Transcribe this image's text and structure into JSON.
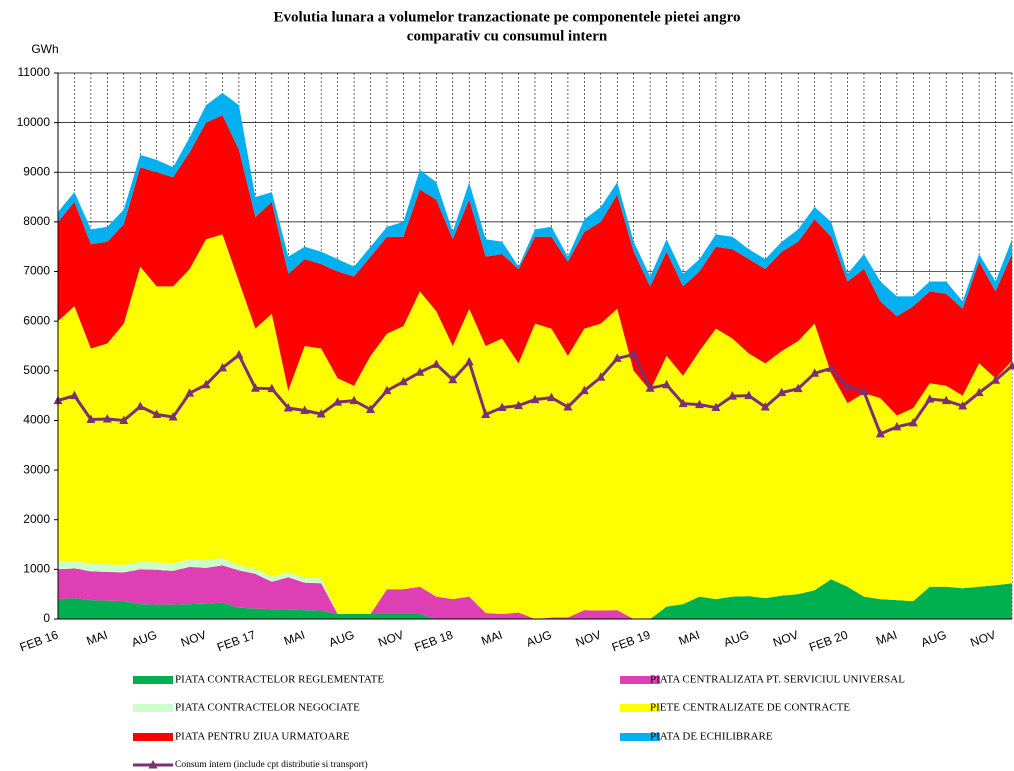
{
  "chart_data": {
    "type": "area",
    "title": [
      "Evolutia lunara a volumelor tranzactionate pe componentele pietei angro",
      "comparativ cu consumul intern"
    ],
    "y_unit": "GWh",
    "categories": [
      "FEB 16",
      null,
      null,
      "MAI",
      null,
      null,
      "AUG",
      null,
      null,
      "NOV",
      null,
      null,
      "FEB 17",
      null,
      null,
      "MAI",
      null,
      null,
      "AUG",
      null,
      null,
      "NOV",
      null,
      null,
      "FEB 18",
      null,
      null,
      "MAI",
      null,
      null,
      "AUG",
      null,
      null,
      "NOV",
      null,
      null,
      "FEB 19",
      null,
      null,
      "MAI",
      null,
      null,
      "AUG",
      null,
      null,
      "NOV",
      null,
      null,
      "FEB 20",
      null,
      null,
      "MAI",
      null,
      null,
      "AUG",
      null,
      null,
      "NOV",
      null
    ],
    "ylim": [
      0,
      11000
    ],
    "yticks": [
      0,
      1000,
      2000,
      3000,
      4000,
      5000,
      6000,
      7000,
      8000,
      9000,
      10000,
      11000
    ],
    "grid": true,
    "series": [
      {
        "name": "PIATA CONTRACTELOR REGLEMENTATE",
        "color": "#00b050",
        "values": [
          400,
          420,
          380,
          370,
          360,
          300,
          290,
          290,
          300,
          310,
          330,
          230,
          210,
          200,
          190,
          180,
          170,
          100,
          100,
          100,
          100,
          100,
          100,
          0,
          0,
          0,
          0,
          0,
          0,
          0,
          0,
          0,
          0,
          0,
          0,
          0,
          0,
          250,
          300,
          450,
          400,
          450,
          460,
          420,
          470,
          500,
          580,
          800,
          650,
          450,
          400,
          380,
          360,
          650,
          650,
          620,
          650,
          680,
          720
        ]
      },
      {
        "name": "PIATA CENTRALIZATA PT. SERVICIUL UNIVERSAL",
        "color": "#df3fb4",
        "values": [
          600,
          600,
          580,
          580,
          580,
          700,
          700,
          680,
          750,
          720,
          750,
          750,
          700,
          550,
          650,
          550,
          550,
          0,
          0,
          0,
          500,
          500,
          550,
          450,
          400,
          450,
          120,
          100,
          130,
          0,
          30,
          30,
          180,
          170,
          180,
          0,
          0,
          0,
          0,
          0,
          0,
          0,
          0,
          0,
          0,
          0,
          0,
          0,
          0,
          0,
          0,
          0,
          0,
          0,
          0,
          0,
          0,
          0,
          0
        ]
      },
      {
        "name": "PIATA CONTRACTELOR NEGOCIATE",
        "color": "#ccffcc",
        "values": [
          150,
          150,
          150,
          150,
          150,
          150,
          150,
          150,
          150,
          150,
          150,
          100,
          100,
          100,
          100,
          100,
          100,
          0,
          0,
          0,
          0,
          0,
          0,
          0,
          0,
          0,
          0,
          0,
          0,
          0,
          0,
          0,
          0,
          0,
          0,
          0,
          0,
          0,
          0,
          0,
          0,
          0,
          0,
          0,
          0,
          0,
          0,
          0,
          0,
          0,
          0,
          0,
          0,
          0,
          0,
          0,
          0,
          0,
          0
        ]
      },
      {
        "name": "PIETE CENTRALIZATE DE CONTRACTE",
        "color": "#ffff00",
        "values": [
          4850,
          5130,
          4340,
          4450,
          4860,
          5950,
          5560,
          5580,
          5850,
          6470,
          6520,
          5720,
          4840,
          5300,
          3660,
          4670,
          4630,
          4750,
          4600,
          5200,
          5150,
          5300,
          5950,
          5750,
          5100,
          5800,
          5380,
          5550,
          5020,
          5950,
          5820,
          5270,
          5670,
          5780,
          6070,
          5000,
          4600,
          5050,
          4600,
          4950,
          5450,
          5200,
          4890,
          4730,
          4930,
          5100,
          5370,
          4150,
          3700,
          4100,
          4050,
          3720,
          3890,
          4100,
          4050,
          3880,
          4500,
          4170,
          4480
        ]
      },
      {
        "name": "PIATA PENTRU ZIUA URMATOARE",
        "color": "#ff0000",
        "values": [
          2000,
          2100,
          2100,
          2050,
          2000,
          2000,
          2300,
          2200,
          2350,
          2350,
          2400,
          2650,
          2250,
          2250,
          2350,
          1750,
          1700,
          2150,
          2200,
          2000,
          1950,
          1800,
          2050,
          2250,
          2150,
          2200,
          1800,
          1700,
          1900,
          1750,
          1850,
          1900,
          1950,
          2050,
          2300,
          2400,
          2100,
          2100,
          1800,
          1600,
          1650,
          1800,
          1900,
          1900,
          2000,
          2000,
          2100,
          2750,
          2450,
          2500,
          1950,
          2000,
          2050,
          1850,
          1850,
          1750,
          2050,
          1750,
          2150
        ]
      },
      {
        "name": "PIATA DE ECHILIBRARE",
        "color": "#00b0f0",
        "values": [
          200,
          200,
          300,
          300,
          300,
          250,
          250,
          200,
          300,
          350,
          450,
          900,
          400,
          200,
          350,
          250,
          250,
          250,
          200,
          200,
          200,
          300,
          400,
          350,
          150,
          350,
          350,
          250,
          50,
          150,
          200,
          100,
          250,
          300,
          250,
          200,
          200,
          250,
          250,
          250,
          250,
          250,
          200,
          200,
          200,
          250,
          250,
          300,
          150,
          300,
          400,
          400,
          200,
          200,
          250,
          150,
          150,
          200,
          300
        ]
      },
      {
        "name": "Consum intern (include cpt distributie si transport)",
        "color": "#7b3070",
        "type": "line",
        "marker": "triangle",
        "values": [
          4400,
          4500,
          4020,
          4030,
          4000,
          4280,
          4120,
          4070,
          4550,
          4720,
          5060,
          5320,
          4650,
          4640,
          4250,
          4200,
          4130,
          4370,
          4400,
          4220,
          4600,
          4780,
          4970,
          5130,
          4820,
          5180,
          4120,
          4260,
          4300,
          4420,
          4460,
          4270,
          4600,
          4870,
          5250,
          5330,
          4650,
          4720,
          4340,
          4320,
          4260,
          4490,
          4500,
          4270,
          4560,
          4640,
          4950,
          5050,
          4680,
          4580,
          3730,
          3870,
          3950,
          4430,
          4400,
          4290,
          4560,
          4810,
          5100
        ]
      }
    ]
  }
}
